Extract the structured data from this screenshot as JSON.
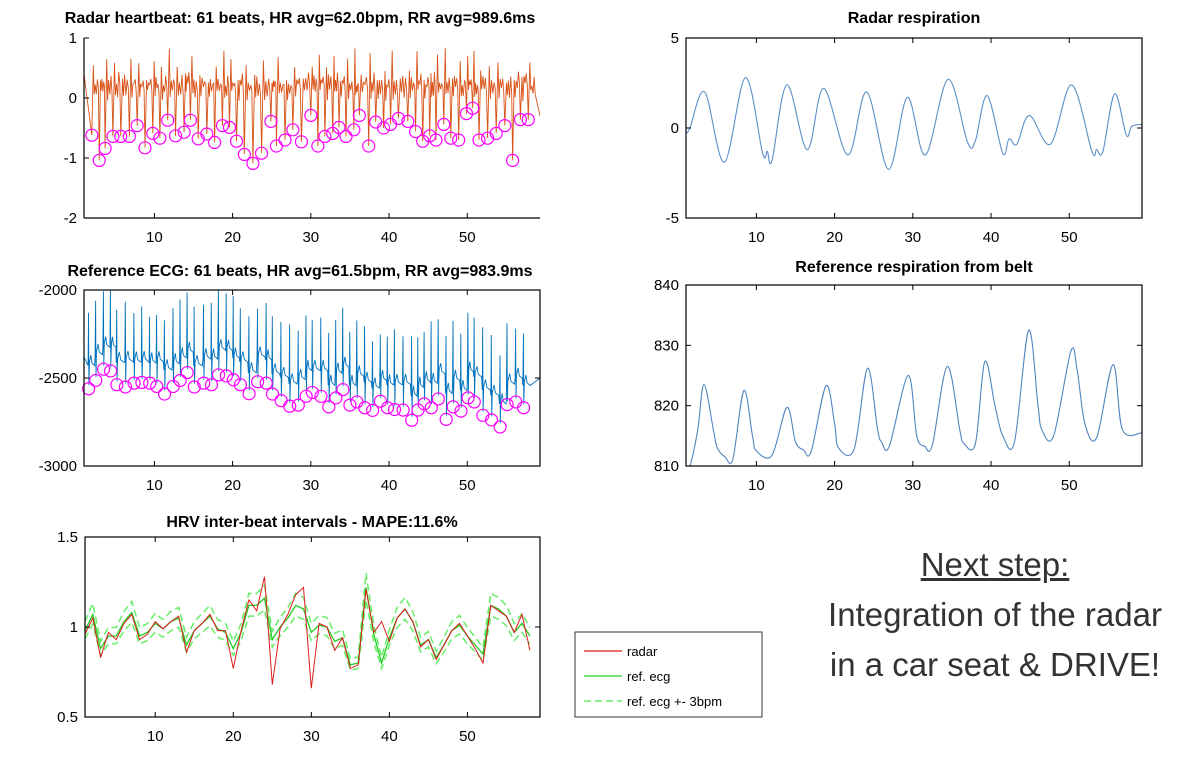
{
  "chart_data": [
    {
      "id": "radar-heartbeat",
      "type": "line",
      "title": "Radar heartbeat: 61 beats, HR avg=62.0bpm, RR avg=989.6ms",
      "xlim": [
        1,
        59.3
      ],
      "ylim": [
        -2,
        1
      ],
      "xticks": [
        "10",
        "20",
        "30",
        "40",
        "50"
      ],
      "yticks": [
        "-2",
        "-1",
        "0",
        "1"
      ],
      "line_color": "#d95319",
      "marker_color": "#ff00ff",
      "marker": "circle",
      "beats": [
        [
          2.0,
          -0.62
        ],
        [
          2.95,
          -1.04
        ],
        [
          3.7,
          -0.84
        ],
        [
          4.7,
          -0.64
        ],
        [
          5.7,
          -0.64
        ],
        [
          6.8,
          -0.64
        ],
        [
          7.8,
          -0.46
        ],
        [
          8.8,
          -0.83
        ],
        [
          9.8,
          -0.59
        ],
        [
          10.7,
          -0.67
        ],
        [
          11.7,
          -0.37
        ],
        [
          12.7,
          -0.63
        ],
        [
          13.8,
          -0.57
        ],
        [
          14.6,
          -0.37
        ],
        [
          15.6,
          -0.68
        ],
        [
          16.7,
          -0.6
        ],
        [
          17.7,
          -0.74
        ],
        [
          18.7,
          -0.46
        ],
        [
          19.6,
          -0.49
        ],
        [
          20.5,
          -0.72
        ],
        [
          21.5,
          -0.94
        ],
        [
          22.6,
          -1.09
        ],
        [
          23.7,
          -0.92
        ],
        [
          24.9,
          -0.39
        ],
        [
          25.6,
          -0.8
        ],
        [
          26.7,
          -0.7
        ],
        [
          27.7,
          -0.53
        ],
        [
          28.8,
          -0.73
        ],
        [
          30.0,
          -0.29
        ],
        [
          30.9,
          -0.8
        ],
        [
          31.8,
          -0.64
        ],
        [
          32.8,
          -0.59
        ],
        [
          33.6,
          -0.49
        ],
        [
          34.5,
          -0.64
        ],
        [
          35.5,
          -0.53
        ],
        [
          36.2,
          -0.29
        ],
        [
          37.4,
          -0.8
        ],
        [
          38.3,
          -0.4
        ],
        [
          39.3,
          -0.5
        ],
        [
          40.2,
          -0.44
        ],
        [
          41.2,
          -0.34
        ],
        [
          42.4,
          -0.39
        ],
        [
          43.4,
          -0.56
        ],
        [
          44.3,
          -0.72
        ],
        [
          45.2,
          -0.63
        ],
        [
          46.0,
          -0.7
        ],
        [
          47.0,
          -0.44
        ],
        [
          47.9,
          -0.67
        ],
        [
          48.9,
          -0.7
        ],
        [
          49.9,
          -0.26
        ],
        [
          50.7,
          -0.17
        ],
        [
          51.5,
          -0.7
        ],
        [
          52.6,
          -0.67
        ],
        [
          53.7,
          -0.59
        ],
        [
          54.8,
          -0.46
        ],
        [
          55.8,
          -1.04
        ],
        [
          56.8,
          -0.36
        ],
        [
          57.8,
          -0.36
        ]
      ]
    },
    {
      "id": "reference-ecg",
      "type": "line",
      "title": "Reference ECG: 61 beats, HR avg=61.5bpm, RR avg=983.9ms",
      "xlim": [
        1,
        59.3
      ],
      "ylim": [
        -3000,
        -2000
      ],
      "xticks": [
        "10",
        "20",
        "30",
        "40",
        "50"
      ],
      "yticks": [
        "-3000",
        "-2500",
        "-2000"
      ],
      "line_color": "#0072bd",
      "marker_color": "#ff00ff",
      "marker": "circle",
      "beats": [
        [
          1.6,
          -2561
        ],
        [
          2.5,
          -2514
        ],
        [
          3.5,
          -2450
        ],
        [
          4.4,
          -2460
        ],
        [
          5.2,
          -2538
        ],
        [
          6.3,
          -2551
        ],
        [
          7.4,
          -2529
        ],
        [
          8.4,
          -2525
        ],
        [
          9.4,
          -2529
        ],
        [
          10.3,
          -2548
        ],
        [
          11.3,
          -2591
        ],
        [
          12.4,
          -2548
        ],
        [
          13.3,
          -2514
        ],
        [
          14.2,
          -2469
        ],
        [
          15.1,
          -2551
        ],
        [
          16.3,
          -2529
        ],
        [
          17.3,
          -2538
        ],
        [
          18.2,
          -2482
        ],
        [
          19.2,
          -2488
        ],
        [
          20.1,
          -2510
        ],
        [
          21.0,
          -2538
        ],
        [
          22.1,
          -2589
        ],
        [
          23.2,
          -2521
        ],
        [
          24.3,
          -2529
        ],
        [
          25.1,
          -2591
        ],
        [
          26.2,
          -2628
        ],
        [
          27.3,
          -2660
        ],
        [
          28.4,
          -2654
        ],
        [
          29.4,
          -2604
        ],
        [
          30.2,
          -2582
        ],
        [
          31.3,
          -2604
        ],
        [
          32.3,
          -2664
        ],
        [
          33.2,
          -2613
        ],
        [
          34.1,
          -2566
        ],
        [
          35.0,
          -2654
        ],
        [
          35.9,
          -2636
        ],
        [
          36.9,
          -2669
        ],
        [
          37.9,
          -2684
        ],
        [
          38.9,
          -2632
        ],
        [
          39.8,
          -2669
        ],
        [
          40.7,
          -2679
        ],
        [
          41.8,
          -2682
        ],
        [
          42.9,
          -2740
        ],
        [
          43.7,
          -2682
        ],
        [
          44.5,
          -2647
        ],
        [
          45.4,
          -2669
        ],
        [
          46.3,
          -2619
        ],
        [
          47.3,
          -2735
        ],
        [
          48.2,
          -2664
        ],
        [
          49.2,
          -2688
        ],
        [
          50.1,
          -2613
        ],
        [
          50.9,
          -2636
        ],
        [
          52.0,
          -2712
        ],
        [
          53.1,
          -2738
        ],
        [
          54.2,
          -2778
        ],
        [
          55.1,
          -2651
        ],
        [
          56.2,
          -2636
        ],
        [
          57.2,
          -2669
        ]
      ]
    },
    {
      "id": "hrv",
      "type": "line",
      "title": "HRV inter-beat intervals - MAPE:11.6%",
      "xlim": [
        1,
        59.3
      ],
      "ylim": [
        0.5,
        1.5
      ],
      "xticks": [
        "10",
        "20",
        "30",
        "40",
        "50"
      ],
      "yticks": [
        "0.5",
        "1",
        "1.5"
      ],
      "legend": "bottom-right-outside",
      "series": [
        {
          "name": "radar",
          "color": "#dd1c1c",
          "style": "solid",
          "values": [
            0.96,
            1.05,
            0.83,
            0.97,
            0.93,
            1.02,
            1.07,
            0.93,
            0.96,
            1.03,
            0.99,
            1.03,
            1.06,
            0.86,
            0.98,
            1.02,
            1.07,
            0.98,
            0.98,
            0.77,
            0.98,
            1.15,
            1.09,
            1.28,
            0.68,
            0.99,
            1.07,
            1.18,
            1.22,
            0.66,
            1.02,
            1.0,
            0.87,
            0.94,
            0.77,
            0.79,
            1.21,
            0.97,
            1.03,
            0.92,
            1.05,
            1.1,
            1.03,
            0.89,
            0.93,
            0.82,
            0.9,
            0.98,
            1.02,
            0.95,
            0.88,
            0.8,
            1.12,
            1.09,
            1.06,
            0.97,
            1.07,
            0.87
          ]
        },
        {
          "name": "ref. ecg",
          "color": "#22cc22",
          "style": "solid",
          "values": [
            0.98,
            1.07,
            0.88,
            0.95,
            0.95,
            1.03,
            1.08,
            0.95,
            0.97,
            1.02,
            0.99,
            1.03,
            1.05,
            0.9,
            0.98,
            1.02,
            1.06,
            0.99,
            0.97,
            0.88,
            0.97,
            1.12,
            1.12,
            1.16,
            0.93,
            1.0,
            1.05,
            1.12,
            1.1,
            0.97,
            1.01,
            1.0,
            0.92,
            0.94,
            0.79,
            0.8,
            1.22,
            0.96,
            0.8,
            0.94,
            1.05,
            1.1,
            1.03,
            0.9,
            0.93,
            0.83,
            0.9,
            0.98,
            1.01,
            0.95,
            0.9,
            0.85,
            1.12,
            1.1,
            1.06,
            0.97,
            1.02,
            0.95
          ]
        },
        {
          "name": "ref. ecg +- 3bpm",
          "color": "#66ee66",
          "style": "dashed",
          "offset_bpm": 3
        }
      ]
    },
    {
      "id": "radar-respiration",
      "type": "line",
      "title": "Radar respiration",
      "xlim": [
        1,
        59.3
      ],
      "ylim": [
        -5,
        5
      ],
      "xticks": [
        "10",
        "20",
        "30",
        "40",
        "50"
      ],
      "yticks": [
        "-5",
        "0",
        "5"
      ],
      "line_color": "#5b8fc7",
      "points": [
        [
          1,
          -0.3
        ],
        [
          1.5,
          0
        ],
        [
          3.4,
          2.0
        ],
        [
          5.9,
          -1.9
        ],
        [
          8.6,
          2.8
        ],
        [
          10.8,
          -1.4
        ],
        [
          11.4,
          -1.3
        ],
        [
          12,
          -1.8
        ],
        [
          13.9,
          2.4
        ],
        [
          16.5,
          -1.2
        ],
        [
          18.6,
          2.2
        ],
        [
          21.7,
          -1.5
        ],
        [
          24.1,
          2.0
        ],
        [
          26.9,
          -2.3
        ],
        [
          29.3,
          1.7
        ],
        [
          31.6,
          -1.5
        ],
        [
          34.5,
          2.7
        ],
        [
          37,
          -0.8
        ],
        [
          38,
          -0.7
        ],
        [
          39.5,
          1.8
        ],
        [
          41.5,
          -1.4
        ],
        [
          42.3,
          -0.6
        ],
        [
          43.3,
          -0.9
        ],
        [
          44.9,
          0.7
        ],
        [
          47.6,
          -0.9
        ],
        [
          50.3,
          2.4
        ],
        [
          52.9,
          -1.3
        ],
        [
          53.5,
          -1.2
        ],
        [
          54.3,
          -1.3
        ],
        [
          55.8,
          1.9
        ],
        [
          57.3,
          -0.4
        ],
        [
          58,
          0.1
        ],
        [
          59.3,
          0.2
        ]
      ]
    },
    {
      "id": "reference-respiration",
      "type": "line",
      "title": "Reference respiration from belt",
      "xlim": [
        1,
        59.3
      ],
      "ylim": [
        810,
        840
      ],
      "xticks": [
        "10",
        "20",
        "30",
        "40",
        "50"
      ],
      "yticks": [
        "810",
        "820",
        "830",
        "840"
      ],
      "line_color": "#4f86c0",
      "points": [
        [
          1,
          810
        ],
        [
          1.5,
          810
        ],
        [
          2.5,
          816
        ],
        [
          3.3,
          823.5
        ],
        [
          4.5,
          816
        ],
        [
          5,
          813
        ],
        [
          6,
          811.5
        ],
        [
          7,
          811.2
        ],
        [
          8.4,
          822.5
        ],
        [
          9.5,
          815
        ],
        [
          10,
          812.5
        ],
        [
          12,
          811.8
        ],
        [
          13.9,
          819.7
        ],
        [
          15,
          814
        ],
        [
          16,
          812.7
        ],
        [
          17,
          812.4
        ],
        [
          18.9,
          823.3
        ],
        [
          20,
          817
        ],
        [
          20.5,
          813
        ],
        [
          22.5,
          812.8
        ],
        [
          24.2,
          826.2
        ],
        [
          25.5,
          816
        ],
        [
          26,
          814
        ],
        [
          27,
          813.3
        ],
        [
          29.4,
          825
        ],
        [
          30.5,
          815
        ],
        [
          31.5,
          813.3
        ],
        [
          32.5,
          813.5
        ],
        [
          34.4,
          826.5
        ],
        [
          36,
          816
        ],
        [
          36.5,
          813.8
        ],
        [
          38,
          813.7
        ],
        [
          39.2,
          827.3
        ],
        [
          40.5,
          820
        ],
        [
          41.5,
          815
        ],
        [
          43,
          814
        ],
        [
          44.8,
          832.5
        ],
        [
          46,
          820
        ],
        [
          46.5,
          816
        ],
        [
          48,
          815
        ],
        [
          50.2,
          829
        ],
        [
          51,
          826
        ],
        [
          52,
          817
        ],
        [
          53.5,
          814.7
        ],
        [
          55.6,
          826.8
        ],
        [
          56.8,
          816
        ],
        [
          59.3,
          815.5
        ]
      ]
    }
  ],
  "next_step": {
    "heading": "Next step:",
    "line1": "Integration of the radar",
    "line2": "in a car seat & DRIVE!"
  }
}
